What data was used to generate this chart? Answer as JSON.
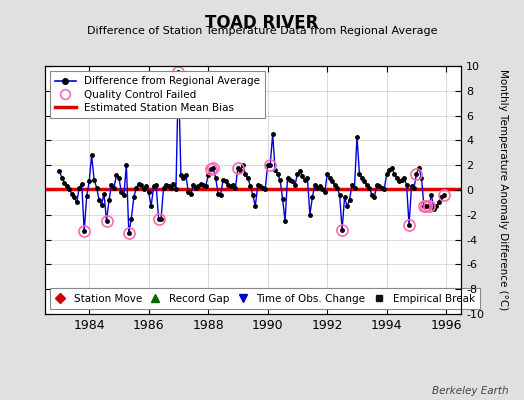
{
  "title": "TOAD RIVER",
  "subtitle": "Difference of Station Temperature Data from Regional Average",
  "ylabel_right": "Monthly Temperature Anomaly Difference (°C)",
  "ylim": [
    -10,
    10
  ],
  "xlim": [
    1982.5,
    1996.5
  ],
  "xticks": [
    1984,
    1986,
    1988,
    1990,
    1992,
    1994,
    1996
  ],
  "yticks": [
    -10,
    -8,
    -6,
    -4,
    -2,
    0,
    2,
    4,
    6,
    8,
    10
  ],
  "bias_value": 0.1,
  "background_color": "#e0e0e0",
  "plot_bg_color": "#ffffff",
  "line_color": "#0000dd",
  "marker_color": "#000000",
  "bias_color": "#dd0000",
  "qc_color": "#ff69b4",
  "watermark": "Berkeley Earth",
  "time_series": [
    [
      1983.0,
      1.5
    ],
    [
      1983.083,
      1.0
    ],
    [
      1983.167,
      0.6
    ],
    [
      1983.25,
      0.3
    ],
    [
      1983.333,
      0.1
    ],
    [
      1983.417,
      -0.3
    ],
    [
      1983.5,
      -0.6
    ],
    [
      1983.583,
      -1.0
    ],
    [
      1983.667,
      0.2
    ],
    [
      1983.75,
      0.5
    ],
    [
      1983.833,
      -3.3
    ],
    [
      1983.917,
      -0.5
    ],
    [
      1984.0,
      0.7
    ],
    [
      1984.083,
      2.8
    ],
    [
      1984.167,
      0.8
    ],
    [
      1984.25,
      0.2
    ],
    [
      1984.333,
      -0.8
    ],
    [
      1984.417,
      -1.2
    ],
    [
      1984.5,
      -0.3
    ],
    [
      1984.583,
      -2.5
    ],
    [
      1984.667,
      -0.8
    ],
    [
      1984.75,
      0.4
    ],
    [
      1984.833,
      0.2
    ],
    [
      1984.917,
      1.2
    ],
    [
      1985.0,
      1.0
    ],
    [
      1985.083,
      -0.2
    ],
    [
      1985.167,
      -0.4
    ],
    [
      1985.25,
      2.0
    ],
    [
      1985.333,
      -3.5
    ],
    [
      1985.417,
      -2.3
    ],
    [
      1985.5,
      -0.6
    ],
    [
      1985.583,
      0.2
    ],
    [
      1985.667,
      0.5
    ],
    [
      1985.75,
      0.4
    ],
    [
      1985.833,
      0.1
    ],
    [
      1985.917,
      0.3
    ],
    [
      1986.0,
      -0.2
    ],
    [
      1986.083,
      -1.3
    ],
    [
      1986.167,
      0.3
    ],
    [
      1986.25,
      0.4
    ],
    [
      1986.333,
      -2.3
    ],
    [
      1986.417,
      -2.3
    ],
    [
      1986.5,
      0.2
    ],
    [
      1986.583,
      0.4
    ],
    [
      1986.667,
      0.3
    ],
    [
      1986.75,
      0.2
    ],
    [
      1986.833,
      0.5
    ],
    [
      1986.917,
      0.1
    ],
    [
      1987.0,
      9.5
    ],
    [
      1987.083,
      1.2
    ],
    [
      1987.167,
      1.0
    ],
    [
      1987.25,
      1.2
    ],
    [
      1987.333,
      -0.2
    ],
    [
      1987.417,
      -0.3
    ],
    [
      1987.5,
      0.4
    ],
    [
      1987.583,
      0.2
    ],
    [
      1987.667,
      0.3
    ],
    [
      1987.75,
      0.5
    ],
    [
      1987.833,
      0.4
    ],
    [
      1987.917,
      0.3
    ],
    [
      1988.0,
      1.2
    ],
    [
      1988.083,
      1.7
    ],
    [
      1988.167,
      1.8
    ],
    [
      1988.25,
      1.0
    ],
    [
      1988.333,
      -0.3
    ],
    [
      1988.417,
      -0.4
    ],
    [
      1988.5,
      0.8
    ],
    [
      1988.583,
      0.7
    ],
    [
      1988.667,
      0.4
    ],
    [
      1988.75,
      0.3
    ],
    [
      1988.833,
      0.4
    ],
    [
      1988.917,
      0.2
    ],
    [
      1989.0,
      1.8
    ],
    [
      1989.083,
      1.6
    ],
    [
      1989.167,
      2.0
    ],
    [
      1989.25,
      1.3
    ],
    [
      1989.333,
      1.0
    ],
    [
      1989.417,
      0.3
    ],
    [
      1989.5,
      -0.4
    ],
    [
      1989.583,
      -1.3
    ],
    [
      1989.667,
      0.4
    ],
    [
      1989.75,
      0.3
    ],
    [
      1989.833,
      0.2
    ],
    [
      1989.917,
      0.1
    ],
    [
      1990.0,
      2.0
    ],
    [
      1990.083,
      2.0
    ],
    [
      1990.167,
      4.5
    ],
    [
      1990.25,
      1.6
    ],
    [
      1990.333,
      1.3
    ],
    [
      1990.417,
      0.8
    ],
    [
      1990.5,
      -0.7
    ],
    [
      1990.583,
      -2.5
    ],
    [
      1990.667,
      1.0
    ],
    [
      1990.75,
      0.8
    ],
    [
      1990.833,
      0.7
    ],
    [
      1990.917,
      0.4
    ],
    [
      1991.0,
      1.3
    ],
    [
      1991.083,
      1.5
    ],
    [
      1991.167,
      1.1
    ],
    [
      1991.25,
      0.8
    ],
    [
      1991.333,
      1.0
    ],
    [
      1991.417,
      -2.0
    ],
    [
      1991.5,
      -0.6
    ],
    [
      1991.583,
      0.4
    ],
    [
      1991.667,
      0.2
    ],
    [
      1991.75,
      0.3
    ],
    [
      1991.833,
      0.1
    ],
    [
      1991.917,
      -0.2
    ],
    [
      1992.0,
      1.3
    ],
    [
      1992.083,
      1.0
    ],
    [
      1992.167,
      0.7
    ],
    [
      1992.25,
      0.4
    ],
    [
      1992.333,
      0.2
    ],
    [
      1992.417,
      -0.4
    ],
    [
      1992.5,
      -3.2
    ],
    [
      1992.583,
      -0.6
    ],
    [
      1992.667,
      -1.3
    ],
    [
      1992.75,
      -0.8
    ],
    [
      1992.833,
      0.4
    ],
    [
      1992.917,
      0.2
    ],
    [
      1993.0,
      4.3
    ],
    [
      1993.083,
      1.3
    ],
    [
      1993.167,
      1.0
    ],
    [
      1993.25,
      0.7
    ],
    [
      1993.333,
      0.4
    ],
    [
      1993.417,
      0.2
    ],
    [
      1993.5,
      -0.4
    ],
    [
      1993.583,
      -0.6
    ],
    [
      1993.667,
      0.4
    ],
    [
      1993.75,
      0.3
    ],
    [
      1993.833,
      0.2
    ],
    [
      1993.917,
      0.1
    ],
    [
      1994.0,
      1.3
    ],
    [
      1994.083,
      1.6
    ],
    [
      1994.167,
      1.8
    ],
    [
      1994.25,
      1.3
    ],
    [
      1994.333,
      1.0
    ],
    [
      1994.417,
      0.7
    ],
    [
      1994.5,
      0.8
    ],
    [
      1994.583,
      1.0
    ],
    [
      1994.667,
      0.4
    ],
    [
      1994.75,
      -2.8
    ],
    [
      1994.833,
      0.3
    ],
    [
      1994.917,
      0.2
    ],
    [
      1995.0,
      1.3
    ],
    [
      1995.083,
      1.8
    ],
    [
      1995.167,
      1.0
    ],
    [
      1995.25,
      -1.3
    ],
    [
      1995.333,
      -1.3
    ],
    [
      1995.417,
      -1.3
    ],
    [
      1995.5,
      -0.4
    ],
    [
      1995.583,
      -1.5
    ],
    [
      1995.667,
      -1.3
    ],
    [
      1995.75,
      -1.0
    ],
    [
      1995.833,
      -0.6
    ],
    [
      1995.917,
      -0.4
    ]
  ],
  "qc_failed_times": [
    1983.833,
    1984.583,
    1985.333,
    1986.333,
    1987.0,
    1988.083,
    1988.167,
    1989.0,
    1990.083,
    1992.5,
    1994.75,
    1995.0,
    1995.25,
    1995.333,
    1995.417,
    1995.917
  ]
}
